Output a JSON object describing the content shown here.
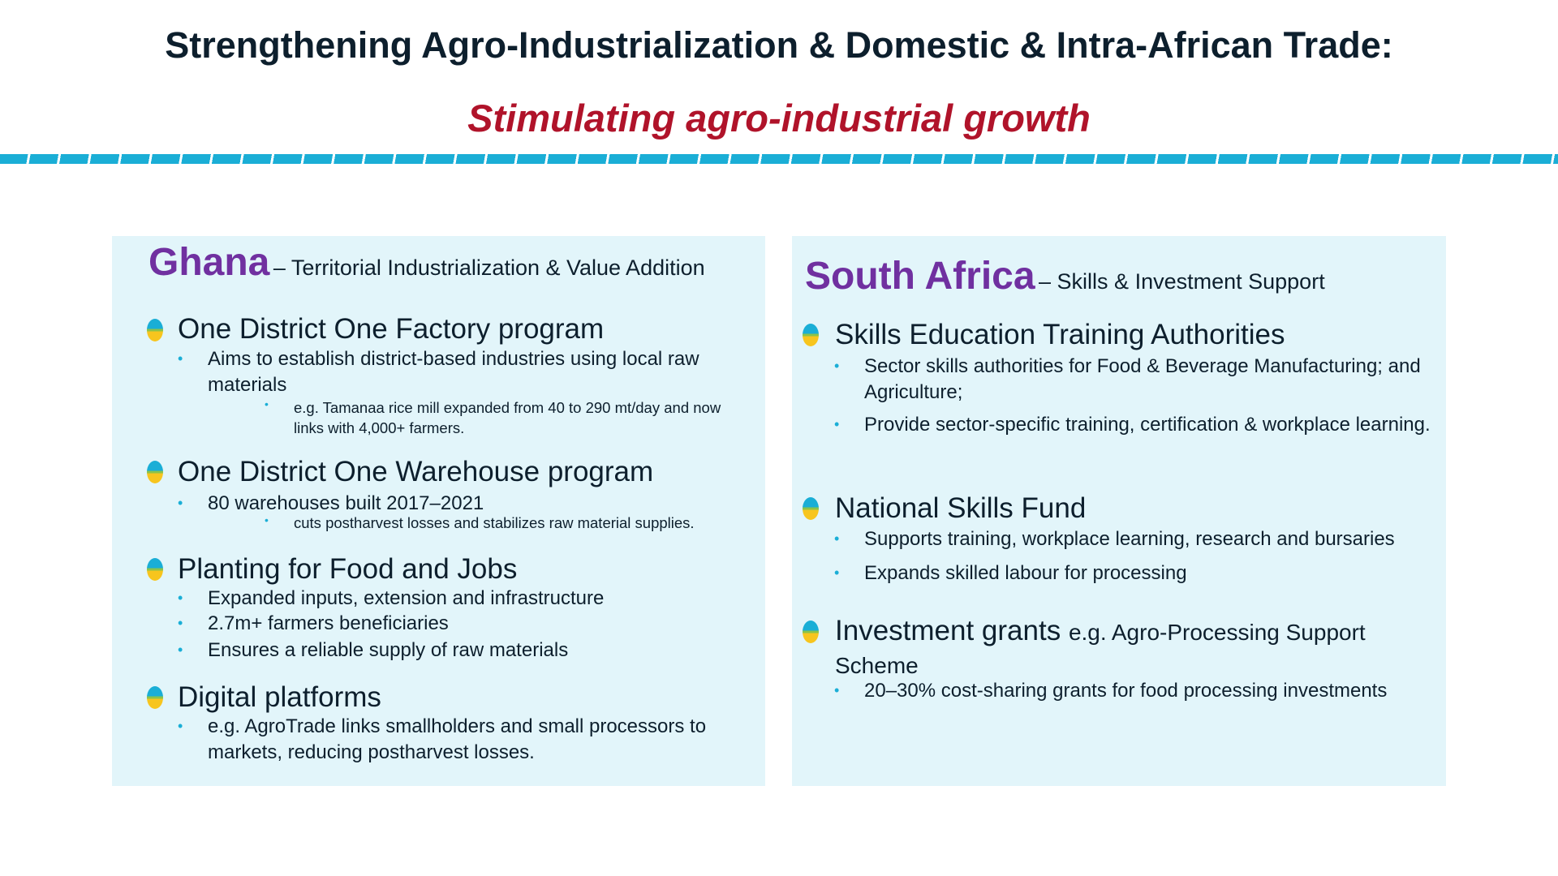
{
  "header": {
    "title": "Strengthening Agro-Industrialization & Domestic & Intra-African Trade:",
    "subtitle": "Stimulating agro-industrial growth"
  },
  "colors": {
    "accent_band": "#1aaed6",
    "country": "#7030a0",
    "subtitle": "#b0132a",
    "panel": "#e2f5fa"
  },
  "ghana": {
    "country": "Ghana",
    "subtitle": "– Territorial Industrialization & Value Addition",
    "items": [
      {
        "label": "One District One Factory program",
        "bullets": [
          "Aims to establish district-based industries using local raw materials"
        ],
        "sub_bullets": [
          "e.g. Tamanaa rice mill expanded from 40 to 290 mt/day and now links with 4,000+ farmers."
        ]
      },
      {
        "label": "One District One Warehouse program",
        "bullets": [
          "80 warehouses built 2017–2021"
        ],
        "sub_bullets": [
          "cuts postharvest losses and stabilizes raw material supplies."
        ]
      },
      {
        "label": "Planting for Food and Jobs",
        "bullets": [
          "Expanded inputs, extension and infrastructure",
          "2.7m+ farmers beneficiaries",
          "Ensures a reliable supply of raw materials"
        ]
      },
      {
        "label": "Digital platforms",
        "bullets": [
          "e.g. AgroTrade links smallholders and small processors to markets, reducing postharvest losses."
        ]
      }
    ]
  },
  "south_africa": {
    "country": "South Africa",
    "subtitle": "– Skills & Investment Support",
    "items": [
      {
        "label": "Skills Education Training Authorities",
        "bullets": [
          "Sector skills authorities for Food & Beverage Manufacturing; and Agriculture;",
          "Provide sector-specific training, certification & workplace learning."
        ]
      },
      {
        "label": "National Skills Fund",
        "bullets": [
          "Supports training, workplace learning, research and bursaries",
          "Expands skilled labour for processing"
        ]
      },
      {
        "label": "Investment grants",
        "label_suffix": "e.g. Agro-Processing Support Scheme",
        "bullets": [
          "20–30% cost-sharing grants for food processing investments"
        ]
      }
    ]
  }
}
